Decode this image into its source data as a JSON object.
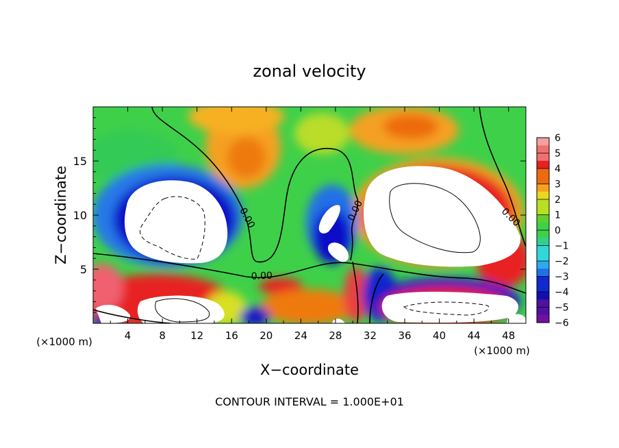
{
  "chart_data": {
    "type": "heatmap",
    "title": "zonal velocity",
    "xlabel": "X−coordinate",
    "ylabel": "Z−coordinate",
    "x_unit_left": "(×1000 m)",
    "x_unit_right": "(×1000 m)",
    "footer": "CONTOUR INTERVAL = 1.000E+01",
    "xlim": [
      0,
      50
    ],
    "ylim": [
      0,
      20
    ],
    "x_ticks": [
      4,
      8,
      12,
      16,
      20,
      24,
      28,
      32,
      36,
      40,
      44,
      48
    ],
    "x_tick_labels": [
      "4",
      "8",
      "12",
      "16",
      "20",
      "24",
      "28",
      "32",
      "36",
      "40",
      "44",
      "48"
    ],
    "y_ticks": [
      5,
      10,
      15
    ],
    "y_tick_labels": [
      "5",
      "10",
      "15"
    ],
    "colorbar": {
      "ticks": [
        6,
        5,
        4,
        3,
        2,
        1,
        0,
        -1,
        -2,
        -3,
        -4,
        -5,
        -6
      ],
      "labels": [
        "6",
        "5",
        "4",
        "3",
        "2",
        "1",
        "0",
        "−1",
        "−2",
        "−3",
        "−4",
        "−5",
        "−6"
      ],
      "range": [
        -6,
        6
      ]
    },
    "contour_labels": [
      {
        "text": "0.00",
        "x": 17.5,
        "z": 9.6,
        "rotate": 62
      },
      {
        "text": "0.00",
        "x": 19.5,
        "z": 4.1,
        "rotate": -2
      },
      {
        "text": "0.00",
        "x": 30.6,
        "z": 10.3,
        "rotate": -65
      },
      {
        "text": "0.00",
        "x": 48.0,
        "z": 9.6,
        "rotate": 45
      }
    ],
    "features": [
      {
        "kind": "negative_jet",
        "center_x": 9,
        "center_z": 8.5
      },
      {
        "kind": "positive_jet",
        "center_x": 40.5,
        "center_z": 10
      },
      {
        "kind": "negative_cell",
        "center_x": 27.3,
        "center_z": 10
      },
      {
        "kind": "negative_cell",
        "center_x": 27.3,
        "center_z": 6.5
      },
      {
        "kind": "positive_upper",
        "center_x": 17,
        "center_z": 15.5
      },
      {
        "kind": "positive_upper",
        "center_x": 36,
        "center_z": 18.5
      },
      {
        "kind": "positive_lower",
        "center_x": 10,
        "center_z": 2
      }
    ]
  }
}
